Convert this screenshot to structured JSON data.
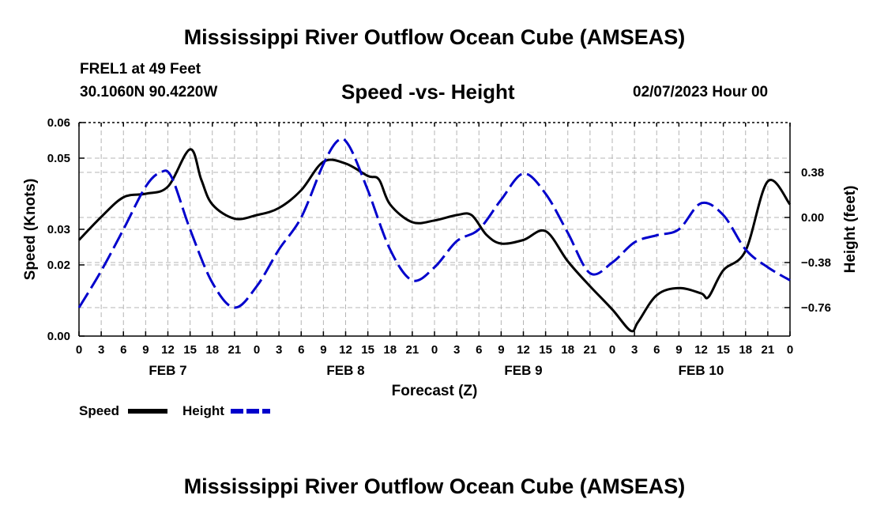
{
  "header": {
    "title_top": "Mississippi River Outflow Ocean Cube (AMSEAS)",
    "title_bottom": "Mississippi River Outflow Ocean Cube (AMSEAS)",
    "station": "FREL1 at 49 Feet",
    "coords": "30.1060N  90.4220W",
    "subtitle": "Speed -vs- Height",
    "datetime": "02/07/2023 Hour 00"
  },
  "legend": {
    "speed_label": "Speed",
    "height_label": "Height"
  },
  "colors": {
    "speed": "#000000",
    "height": "#0000cc",
    "grid": "#b4b4b4"
  },
  "chart_data": {
    "type": "line",
    "title": "Speed -vs- Height",
    "xlabel": "Forecast (Z)",
    "ylabel_left": "Speed (Knots)",
    "ylabel_right": "Height (feet)",
    "x_range_hours": [
      0,
      96
    ],
    "x_tick_labels": [
      "0",
      "3",
      "6",
      "9",
      "12",
      "15",
      "18",
      "21",
      "0",
      "3",
      "6",
      "9",
      "12",
      "15",
      "18",
      "21",
      "0",
      "3",
      "6",
      "9",
      "12",
      "15",
      "18",
      "21",
      "0",
      "3",
      "6",
      "9",
      "12",
      "15",
      "18",
      "21",
      "0"
    ],
    "day_labels": [
      {
        "label": "FEB 7",
        "hour": 12
      },
      {
        "label": "FEB 8",
        "hour": 36
      },
      {
        "label": "FEB 9",
        "hour": 60
      },
      {
        "label": "FEB 10",
        "hour": 84
      }
    ],
    "left_axis": {
      "min": 0.0,
      "max": 0.06,
      "ticks": [
        0.0,
        0.02,
        0.03,
        0.05,
        0.06
      ],
      "tick_labels": [
        "0.00",
        "0.02",
        "0.03",
        "0.05",
        "0.06"
      ]
    },
    "right_axis": {
      "min": -1.0,
      "max": 0.8,
      "ticks": [
        -0.76,
        -0.38,
        0.0,
        0.38
      ],
      "tick_labels": [
        "−0.76",
        "−0.38",
        "0.00",
        "0.38"
      ]
    },
    "series": [
      {
        "name": "Speed",
        "axis": "left",
        "style": "solid",
        "x": [
          0,
          3,
          6,
          9,
          12,
          15,
          16.5,
          18,
          21,
          24,
          27,
          30,
          33,
          36,
          39,
          40.5,
          42,
          45,
          48,
          51,
          53,
          55,
          57,
          60,
          63,
          66,
          69,
          72,
          74.5,
          75.5,
          78,
          81,
          84,
          85,
          87,
          90,
          93,
          96
        ],
        "values": [
          0.027,
          0.0335,
          0.039,
          0.04,
          0.042,
          0.0525,
          0.044,
          0.037,
          0.033,
          0.034,
          0.036,
          0.041,
          0.049,
          0.0485,
          0.045,
          0.044,
          0.037,
          0.032,
          0.0325,
          0.034,
          0.034,
          0.0285,
          0.026,
          0.027,
          0.0295,
          0.021,
          0.014,
          0.0075,
          0.0015,
          0.004,
          0.0115,
          0.0135,
          0.012,
          0.011,
          0.0185,
          0.024,
          0.0435,
          0.037
        ]
      },
      {
        "name": "Height",
        "axis": "right",
        "style": "dashed",
        "x": [
          0,
          3,
          6,
          9,
          11,
          12.5,
          15,
          18,
          21,
          24,
          27,
          30,
          33,
          35,
          36.5,
          39,
          42,
          45,
          48,
          51,
          54,
          57,
          60,
          63,
          66,
          69,
          72,
          75,
          78,
          81,
          84,
          87,
          90,
          93,
          96
        ],
        "values": [
          -0.76,
          -0.45,
          -0.1,
          0.26,
          0.38,
          0.34,
          -0.1,
          -0.55,
          -0.76,
          -0.58,
          -0.27,
          0.0,
          0.45,
          0.65,
          0.6,
          0.23,
          -0.27,
          -0.53,
          -0.42,
          -0.2,
          -0.1,
          0.15,
          0.37,
          0.2,
          -0.13,
          -0.47,
          -0.38,
          -0.21,
          -0.15,
          -0.1,
          0.12,
          0.02,
          -0.27,
          -0.42,
          -0.53
        ]
      }
    ]
  }
}
